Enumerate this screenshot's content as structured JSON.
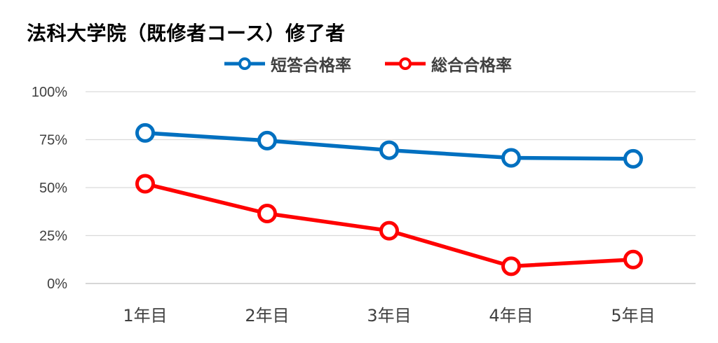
{
  "chart_data": {
    "type": "line",
    "title": "法科大学院（既修者コース）修了者",
    "categories": [
      "1年目",
      "2年目",
      "3年目",
      "4年目",
      "5年目"
    ],
    "series": [
      {
        "name": "短答合格率",
        "color": "#0070C0",
        "values": [
          78.5,
          74.5,
          69.5,
          65.5,
          65
        ]
      },
      {
        "name": "総合合格率",
        "color": "#FF0000",
        "values": [
          52,
          36.5,
          27.5,
          9,
          12.5
        ]
      }
    ],
    "ylim": [
      0,
      100
    ],
    "yticks": [
      "0%",
      "25%",
      "50%",
      "75%",
      "100%"
    ],
    "ytick_values": [
      0,
      25,
      50,
      75,
      100
    ],
    "grid": true,
    "legend_position": "top"
  }
}
